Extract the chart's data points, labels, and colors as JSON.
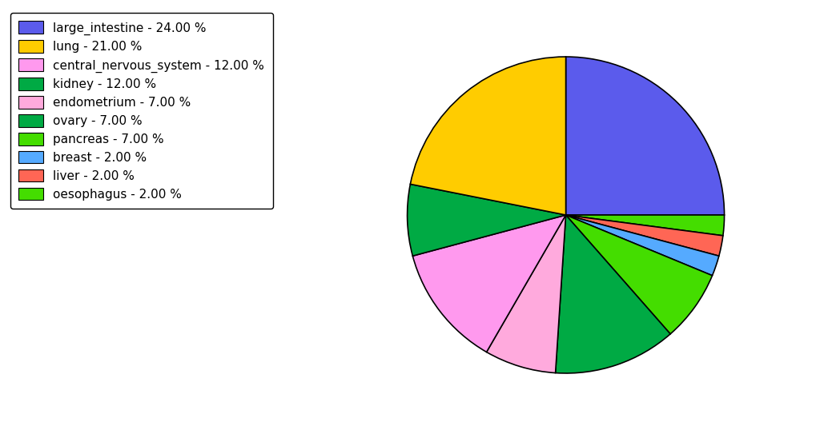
{
  "labels": [
    "large_intestine - 24.00 %",
    "lung - 21.00 %",
    "central_nervous_system - 12.00 %",
    "kidney - 12.00 %",
    "endometrium - 7.00 %",
    "ovary - 7.00 %",
    "pancreas - 7.00 %",
    "breast - 2.00 %",
    "liver - 2.00 %",
    "oesophagus - 2.00 %"
  ],
  "values": [
    24,
    21,
    12,
    12,
    7,
    7,
    7,
    2,
    2,
    2
  ],
  "slice_order": [
    0,
    9,
    8,
    7,
    6,
    3,
    1,
    4,
    5,
    2
  ],
  "colors": [
    "#5b5bec",
    "#ffcc00",
    "#ff99ee",
    "#00aa44",
    "#ffaadd",
    "#00aa44",
    "#44dd00",
    "#55aaff",
    "#ff6655",
    "#44dd00"
  ],
  "startangle": 90,
  "figsize": [
    10.24,
    5.38
  ],
  "dpi": 100
}
